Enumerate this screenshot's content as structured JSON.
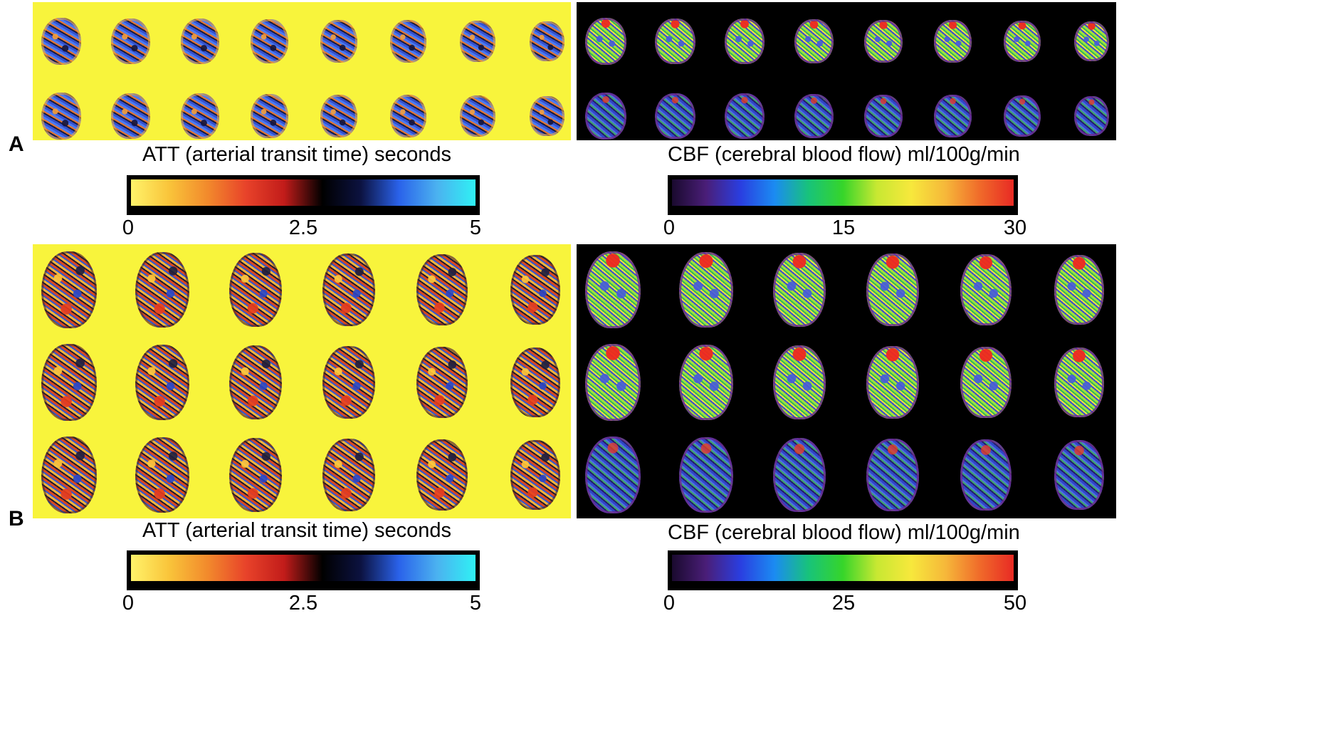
{
  "panels": [
    {
      "letter": "A",
      "att_caption": "ATT (arterial transit time) seconds",
      "att_ticks": [
        "0",
        "2.5",
        "5"
      ],
      "cbf_caption": "CBF (cerebral blood flow) ml/100g/min",
      "cbf_ticks": [
        "0",
        "15",
        "30"
      ]
    },
    {
      "letter": "B",
      "att_caption": "ATT (arterial transit time) seconds",
      "att_ticks": [
        "0",
        "2.5",
        "5"
      ],
      "cbf_caption": "CBF (cerebral blood flow) ml/100g/min",
      "cbf_ticks": [
        "0",
        "25",
        "50"
      ]
    }
  ],
  "colors": {
    "att_background": "#f8f43c",
    "cbf_background": "#000000",
    "att_colormap": [
      "#fff36a",
      "#f9c43a",
      "#f28a2c",
      "#e8432a",
      "#c21c1a",
      "#000000",
      "#0c1240",
      "#2a62ea",
      "#4bb2f0",
      "#2ff1f4"
    ],
    "cbf_colormap": [
      "#1a0a2e",
      "#4a1e78",
      "#2a3ee0",
      "#1b8bf2",
      "#18c37a",
      "#36d52a",
      "#c8e832",
      "#f7e83c",
      "#f6b83a",
      "#f06b2a",
      "#e82a24"
    ]
  }
}
